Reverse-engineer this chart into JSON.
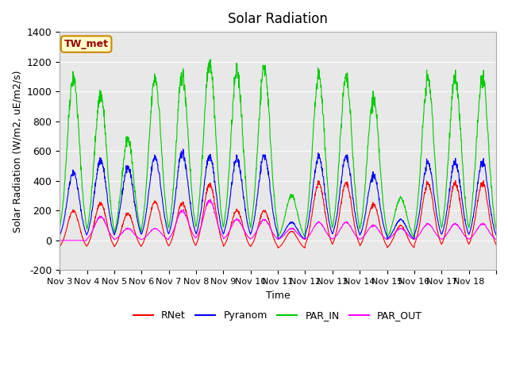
{
  "title": "Solar Radiation",
  "ylabel": "Solar Radiation (W/m2, uE/m2/s)",
  "xlabel": "Time",
  "ylim": [
    -200,
    1400
  ],
  "yticks": [
    -200,
    0,
    200,
    400,
    600,
    800,
    1000,
    1200,
    1400
  ],
  "station_label": "TW_met",
  "colors": {
    "RNet": "#ff0000",
    "Pyranom": "#0000ff",
    "PAR_IN": "#00cc00",
    "PAR_OUT": "#ff00ff"
  },
  "x_tick_positions": [
    0,
    1,
    2,
    3,
    4,
    5,
    6,
    7,
    8,
    9,
    10,
    11,
    12,
    13,
    14,
    15,
    16
  ],
  "x_tick_labels": [
    "Nov 3",
    "Nov 4",
    "Nov 5",
    "Nov 6",
    "Nov 7",
    "Nov 8",
    "Nov 9",
    "Nov 10",
    "Nov 11",
    "Nov 12",
    "Nov 13",
    "Nov 14",
    "Nov 15",
    "Nov 16",
    "Nov 17",
    "Nov 18",
    ""
  ],
  "plot_bg_color": "#e8e8e8",
  "n_days": 16,
  "pts_per_day": 96,
  "seed": 42,
  "par_in_peaks": [
    1100,
    980,
    680,
    1090,
    1110,
    1200,
    1130,
    1165,
    300,
    1095,
    1085,
    945,
    285,
    1085,
    1080,
    1080
  ],
  "pyranom_peaks": [
    460,
    540,
    490,
    560,
    590,
    570,
    545,
    570,
    120,
    555,
    555,
    435,
    140,
    520,
    520,
    520
  ],
  "rnet_peaks": [
    200,
    250,
    180,
    260,
    250,
    380,
    200,
    200,
    60,
    380,
    380,
    240,
    100,
    380,
    380,
    380
  ],
  "par_out_peaks": [
    0,
    160,
    80,
    80,
    200,
    270,
    140,
    140,
    80,
    120,
    120,
    100,
    80,
    110,
    110,
    110
  ]
}
